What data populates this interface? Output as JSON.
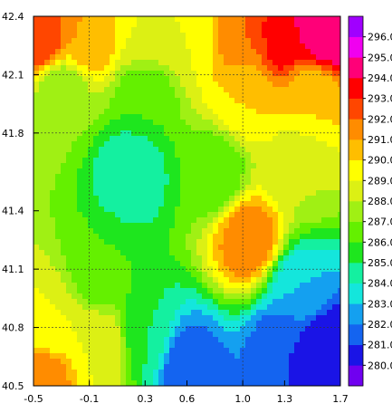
{
  "chart_data": {
    "type": "heatmap",
    "title": "",
    "xlabel": "",
    "ylabel": "",
    "xlim": [
      -0.5,
      1.7
    ],
    "ylim": [
      40.5,
      42.4
    ],
    "x_ticks": [
      "-0.5",
      "-0.1",
      "0.3",
      "0.6",
      "1.0",
      "1.3",
      "1.7"
    ],
    "y_ticks": [
      "40.5",
      "40.8",
      "41.1",
      "41.4",
      "41.8",
      "42.1",
      "42.4"
    ],
    "gridlines": [
      -0.1,
      1.0,
      40.8,
      41.1,
      41.8,
      42.1
    ],
    "colorbar": {
      "labels": [
        "280.0",
        "281.0",
        "282.0",
        "283.0",
        "284.0",
        "285.0",
        "286.0",
        "287.0",
        "288.0",
        "289.0",
        "290.0",
        "291.0",
        "292.0",
        "293.0",
        "294.0",
        "295.0",
        "296.0"
      ],
      "colors": [
        "#7000f0",
        "#1a14e6",
        "#1464f0",
        "#14a0f0",
        "#14e6dc",
        "#14f0a0",
        "#1ee61e",
        "#64f000",
        "#a0f014",
        "#dcf014",
        "#ffff00",
        "#ffbe00",
        "#ff8c00",
        "#ff4600",
        "#ff0000",
        "#ff0078",
        "#f000f0",
        "#a000ff"
      ]
    },
    "field_samples": [
      {
        "lon": -0.45,
        "lat": 42.3,
        "value": 293
      },
      {
        "lon": -0.1,
        "lat": 42.3,
        "value": 291
      },
      {
        "lon": 0.3,
        "lat": 42.3,
        "value": 289
      },
      {
        "lon": 0.6,
        "lat": 42.3,
        "value": 289
      },
      {
        "lon": 1.0,
        "lat": 42.3,
        "value": 292
      },
      {
        "lon": 1.3,
        "lat": 42.3,
        "value": 294
      },
      {
        "lon": 1.6,
        "lat": 42.3,
        "value": 295
      },
      {
        "lon": -0.3,
        "lat": 42.0,
        "value": 287
      },
      {
        "lon": 0.3,
        "lat": 42.0,
        "value": 286
      },
      {
        "lon": 1.0,
        "lat": 42.0,
        "value": 290
      },
      {
        "lon": 1.5,
        "lat": 42.0,
        "value": 290
      },
      {
        "lon": 0.2,
        "lat": 41.6,
        "value": 284
      },
      {
        "lon": 0.8,
        "lat": 41.6,
        "value": 286
      },
      {
        "lon": 1.4,
        "lat": 41.6,
        "value": 288
      },
      {
        "lon": 1.05,
        "lat": 41.25,
        "value": 292
      },
      {
        "lon": 0.0,
        "lat": 41.1,
        "value": 286
      },
      {
        "lon": 1.4,
        "lat": 41.0,
        "value": 283
      },
      {
        "lon": -0.4,
        "lat": 40.8,
        "value": 289
      },
      {
        "lon": 0.0,
        "lat": 40.7,
        "value": 289
      },
      {
        "lon": 0.3,
        "lat": 40.75,
        "value": 285
      },
      {
        "lon": 1.3,
        "lat": 40.7,
        "value": 281
      },
      {
        "lon": 1.6,
        "lat": 40.7,
        "value": 280
      },
      {
        "lon": -0.45,
        "lat": 40.55,
        "value": 292
      },
      {
        "lon": 0.6,
        "lat": 40.6,
        "value": 281
      }
    ]
  }
}
